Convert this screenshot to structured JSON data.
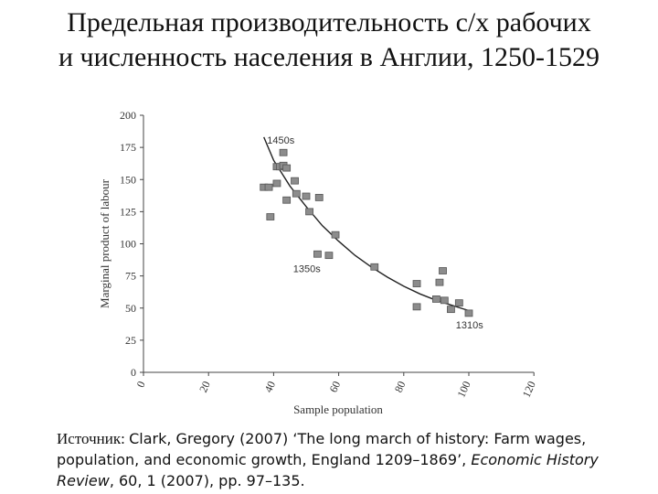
{
  "title": {
    "line1": "Предельная производительность с/х рабочих",
    "line2": "и численность населения в Англии, 1250-1529"
  },
  "source": {
    "prefix": "Источник: ",
    "citation": "Clark, Gregory (2007) ‘The long march of history: Farm wages, population, and economic growth, England 1209–1869’, ",
    "journal": "Economic History Review",
    "details": ", 60, 1 (2007), pp. 97–135."
  },
  "chart_data": {
    "type": "scatter",
    "xlabel": "Sample population",
    "ylabel": "Marginal product of labour",
    "xlim": [
      0,
      120
    ],
    "ylim": [
      0,
      200
    ],
    "xticks": [
      "0",
      "20",
      "40",
      "60",
      "80",
      "100",
      "120"
    ],
    "yticks": [
      "0",
      "25",
      "50",
      "75",
      "100",
      "125",
      "150",
      "175",
      "200"
    ],
    "points": [
      {
        "x": 37,
        "y": 144
      },
      {
        "x": 38.5,
        "y": 144
      },
      {
        "x": 39,
        "y": 121
      },
      {
        "x": 41,
        "y": 160
      },
      {
        "x": 42,
        "y": 160
      },
      {
        "x": 43,
        "y": 171
      },
      {
        "x": 43,
        "y": 161
      },
      {
        "x": 44,
        "y": 159
      },
      {
        "x": 41,
        "y": 147
      },
      {
        "x": 44,
        "y": 134
      },
      {
        "x": 46.5,
        "y": 149
      },
      {
        "x": 47,
        "y": 139
      },
      {
        "x": 50,
        "y": 137
      },
      {
        "x": 51,
        "y": 125
      },
      {
        "x": 54,
        "y": 136
      },
      {
        "x": 53.5,
        "y": 92
      },
      {
        "x": 57,
        "y": 91
      },
      {
        "x": 59,
        "y": 107
      },
      {
        "x": 71,
        "y": 82
      },
      {
        "x": 84,
        "y": 69
      },
      {
        "x": 84,
        "y": 51
      },
      {
        "x": 90,
        "y": 57
      },
      {
        "x": 91,
        "y": 70
      },
      {
        "x": 92,
        "y": 79
      },
      {
        "x": 92.5,
        "y": 56
      },
      {
        "x": 94.5,
        "y": 49
      },
      {
        "x": 97,
        "y": 54
      },
      {
        "x": 100,
        "y": 46
      }
    ],
    "trend": [
      {
        "x": 37,
        "y": 183
      },
      {
        "x": 40,
        "y": 165
      },
      {
        "x": 45,
        "y": 145
      },
      {
        "x": 50,
        "y": 129
      },
      {
        "x": 55,
        "y": 114
      },
      {
        "x": 60,
        "y": 102
      },
      {
        "x": 65,
        "y": 91
      },
      {
        "x": 70,
        "y": 82
      },
      {
        "x": 75,
        "y": 74
      },
      {
        "x": 80,
        "y": 67
      },
      {
        "x": 85,
        "y": 61
      },
      {
        "x": 90,
        "y": 56
      },
      {
        "x": 95,
        "y": 52
      },
      {
        "x": 100,
        "y": 48
      }
    ],
    "annotations": [
      {
        "text": "1450s",
        "x": 38,
        "y": 178
      },
      {
        "text": "1350s",
        "x": 46,
        "y": 78
      },
      {
        "text": "1310s",
        "x": 96,
        "y": 34
      }
    ],
    "colors": {
      "marker_fill": "#8c8c8c",
      "marker_stroke": "#555555",
      "line": "#222222"
    }
  }
}
